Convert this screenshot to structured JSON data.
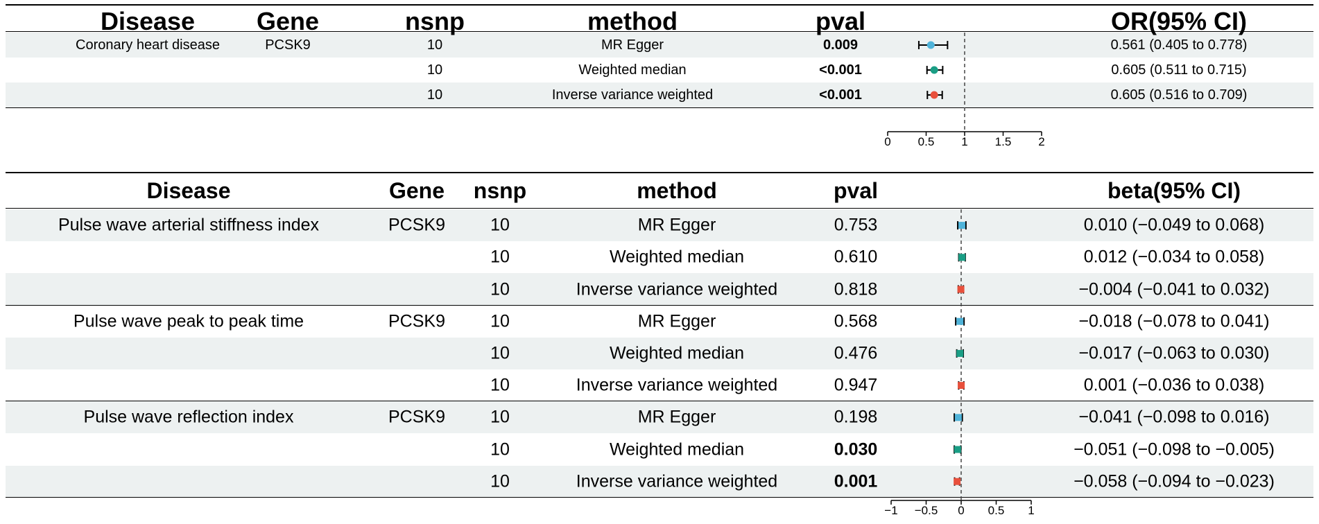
{
  "colors": {
    "mr_egger": "#4fb3d9",
    "weighted_median": "#1a9e85",
    "ivw": "#e8503c",
    "shade": "#edf1f1"
  },
  "chart_data": [
    {
      "type": "table",
      "measure": "OR",
      "columns": [
        "Disease",
        "Gene",
        "nsnp",
        "method",
        "pval",
        "OR(95% CI)"
      ],
      "reference_line": 1,
      "xlim": [
        0,
        2
      ],
      "xticks": [
        "0",
        "0.5",
        "1",
        "1.5",
        "2"
      ],
      "groups": [
        {
          "disease": "Coronary heart disease",
          "gene": "PCSK9",
          "rows": [
            {
              "nsnp": "10",
              "method": "MR Egger",
              "pval": "0.009",
              "significant": true,
              "est": 0.561,
              "lo": 0.405,
              "hi": 0.778,
              "ci_text": "0.561 (0.405 to 0.778)",
              "series": "mr_egger"
            },
            {
              "nsnp": "10",
              "method": "Weighted median",
              "pval": "<0.001",
              "significant": true,
              "est": 0.605,
              "lo": 0.511,
              "hi": 0.715,
              "ci_text": "0.605 (0.511 to 0.715)",
              "series": "weighted_median"
            },
            {
              "nsnp": "10",
              "method": "Inverse variance weighted",
              "pval": "<0.001",
              "significant": true,
              "est": 0.605,
              "lo": 0.516,
              "hi": 0.709,
              "ci_text": "0.605 (0.516 to 0.709)",
              "series": "ivw"
            }
          ]
        }
      ]
    },
    {
      "type": "table",
      "measure": "beta",
      "columns": [
        "Disease",
        "Gene",
        "nsnp",
        "method",
        "pval",
        "beta(95% CI)"
      ],
      "reference_line": 0,
      "xlim": [
        -1,
        1
      ],
      "xticks": [
        "−1",
        "−0.5",
        "0",
        "0.5",
        "1"
      ],
      "groups": [
        {
          "disease": "Pulse wave arterial stiffness index",
          "gene": "PCSK9",
          "rows": [
            {
              "nsnp": "10",
              "method": "MR Egger",
              "pval": "0.753",
              "significant": false,
              "est": 0.01,
              "lo": -0.049,
              "hi": 0.068,
              "ci_text": "0.010 (−0.049 to 0.068)",
              "series": "mr_egger"
            },
            {
              "nsnp": "10",
              "method": "Weighted median",
              "pval": "0.610",
              "significant": false,
              "est": 0.012,
              "lo": -0.034,
              "hi": 0.058,
              "ci_text": "0.012 (−0.034 to 0.058)",
              "series": "weighted_median"
            },
            {
              "nsnp": "10",
              "method": "Inverse variance weighted",
              "pval": "0.818",
              "significant": false,
              "est": -0.004,
              "lo": -0.041,
              "hi": 0.032,
              "ci_text": "−0.004 (−0.041 to 0.032)",
              "series": "ivw"
            }
          ]
        },
        {
          "disease": "Pulse wave peak to peak time",
          "gene": "PCSK9",
          "rows": [
            {
              "nsnp": "10",
              "method": "MR Egger",
              "pval": "0.568",
              "significant": false,
              "est": -0.018,
              "lo": -0.078,
              "hi": 0.041,
              "ci_text": "−0.018 (−0.078 to 0.041)",
              "series": "mr_egger"
            },
            {
              "nsnp": "10",
              "method": "Weighted median",
              "pval": "0.476",
              "significant": false,
              "est": -0.017,
              "lo": -0.063,
              "hi": 0.03,
              "ci_text": "−0.017 (−0.063 to 0.030)",
              "series": "weighted_median"
            },
            {
              "nsnp": "10",
              "method": "Inverse variance weighted",
              "pval": "0.947",
              "significant": false,
              "est": 0.001,
              "lo": -0.036,
              "hi": 0.038,
              "ci_text": "0.001 (−0.036 to 0.038)",
              "series": "ivw"
            }
          ]
        },
        {
          "disease": "Pulse wave reflection index",
          "gene": "PCSK9",
          "rows": [
            {
              "nsnp": "10",
              "method": "MR Egger",
              "pval": "0.198",
              "significant": false,
              "est": -0.041,
              "lo": -0.098,
              "hi": 0.016,
              "ci_text": "−0.041 (−0.098 to 0.016)",
              "series": "mr_egger"
            },
            {
              "nsnp": "10",
              "method": "Weighted median",
              "pval": "0.030",
              "significant": true,
              "est": -0.051,
              "lo": -0.098,
              "hi": -0.005,
              "ci_text": "−0.051 (−0.098 to −0.005)",
              "series": "weighted_median"
            },
            {
              "nsnp": "10",
              "method": "Inverse variance weighted",
              "pval": "0.001",
              "significant": true,
              "est": -0.058,
              "lo": -0.094,
              "hi": -0.023,
              "ci_text": "−0.058 (−0.094 to −0.023)",
              "series": "ivw"
            }
          ]
        }
      ]
    }
  ]
}
